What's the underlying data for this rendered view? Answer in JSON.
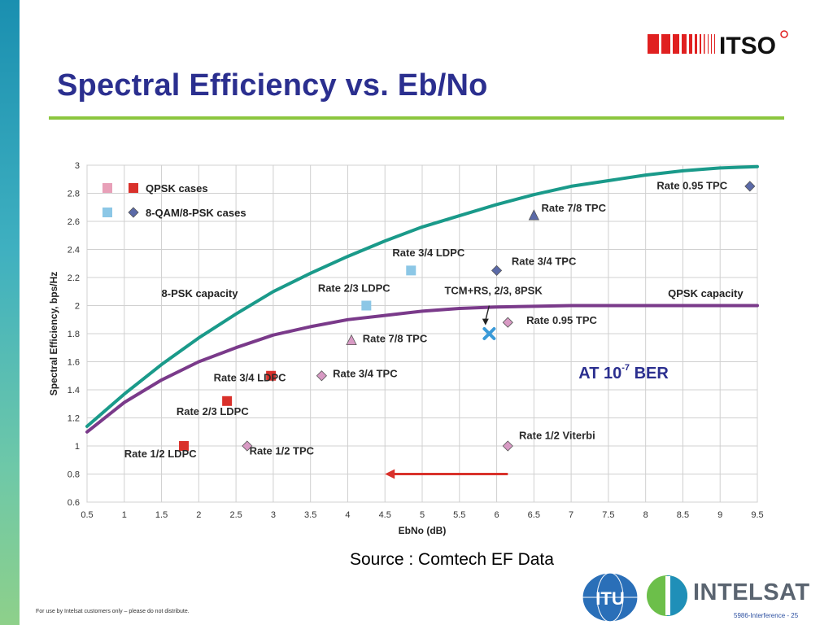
{
  "slide": {
    "title": "Spectral Efficiency vs. Eb/No",
    "source": "Source : Comtech EF Data",
    "footer_note": "For use by Intelsat customers only – please do not distribute.",
    "footer_page": "5986-Interference - 25",
    "logos": {
      "itso": "ITSO",
      "itu": "ITU",
      "intelsat": "INTELSAT"
    }
  },
  "colors": {
    "title": "#2b2f8f",
    "rule": "#8cc63f",
    "psk8_curve": "#1a9a8a",
    "qpsk_curve": "#7a3a8a",
    "qpsk_marker": "#d9312b",
    "qam_marker": "#5b6aa8",
    "pink_marker": "#d89ac4",
    "light_blue_marker": "#8cc7e6",
    "arrow": "#d9312b",
    "cross": "#3a9ad8"
  },
  "chart_data": {
    "type": "line",
    "xlabel": "EbNo (dB)",
    "ylabel": "Spectral Efficiency, bps/Hz",
    "xlim": [
      0.5,
      9.5
    ],
    "ylim": [
      0.6,
      3
    ],
    "xticks": [
      "0.5",
      "1",
      "1.5",
      "2",
      "2.5",
      "3",
      "3.5",
      "4",
      "4.5",
      "5",
      "5.5",
      "6",
      "6.5",
      "7",
      "7.5",
      "8",
      "8.5",
      "9",
      "9.5"
    ],
    "yticks": [
      "0.6",
      "0.8",
      "1",
      "1.2",
      "1.4",
      "1.6",
      "1.8",
      "2",
      "2.2",
      "2.4",
      "2.6",
      "2.8",
      "3"
    ],
    "grid": true,
    "series": [
      {
        "name": "8-PSK capacity",
        "color": "#1a9a8a",
        "x": [
          0.5,
          1.0,
          1.5,
          2.0,
          2.5,
          3.0,
          3.5,
          4.0,
          4.5,
          5.0,
          5.5,
          6.0,
          6.5,
          7.0,
          7.5,
          8.0,
          8.5,
          9.0,
          9.5
        ],
        "y": [
          1.14,
          1.37,
          1.58,
          1.77,
          1.94,
          2.1,
          2.23,
          2.35,
          2.46,
          2.56,
          2.64,
          2.72,
          2.79,
          2.85,
          2.89,
          2.93,
          2.96,
          2.98,
          2.99
        ]
      },
      {
        "name": "QPSK capacity",
        "color": "#7a3a8a",
        "x": [
          0.5,
          1.0,
          1.5,
          2.0,
          2.5,
          3.0,
          3.5,
          4.0,
          4.5,
          5.0,
          5.5,
          6.0,
          6.5,
          7.0,
          8.0,
          9.0,
          9.5
        ],
        "y": [
          1.1,
          1.31,
          1.47,
          1.6,
          1.7,
          1.79,
          1.85,
          1.9,
          1.93,
          1.96,
          1.98,
          1.99,
          1.995,
          2.0,
          2.0,
          2.0,
          2.0
        ]
      }
    ],
    "points": [
      {
        "x": 1.8,
        "y": 1.0,
        "shape": "square",
        "color": "#d9312b",
        "label": "Rate 1/2  LDPC",
        "lx": 1.0,
        "ly": 0.92
      },
      {
        "x": 2.38,
        "y": 1.32,
        "shape": "square",
        "color": "#d9312b",
        "label": "Rate 2/3  LDPC",
        "lx": 1.7,
        "ly": 1.22
      },
      {
        "x": 2.97,
        "y": 1.5,
        "shape": "square",
        "color": "#d9312b",
        "label": "Rate 3/4  LDPC",
        "lx": 2.2,
        "ly": 1.46
      },
      {
        "x": 2.65,
        "y": 1.0,
        "shape": "diamond",
        "color": "#d89ac4",
        "label": "Rate 1/2  TPC",
        "lx": 2.68,
        "ly": 0.94
      },
      {
        "x": 3.65,
        "y": 1.5,
        "shape": "diamond",
        "color": "#d89ac4",
        "label": "Rate 3/4  TPC",
        "lx": 3.8,
        "ly": 1.49
      },
      {
        "x": 4.05,
        "y": 1.75,
        "shape": "triangle",
        "color": "#d89ac4",
        "label": "Rate 7/8  TPC",
        "lx": 4.2,
        "ly": 1.74
      },
      {
        "x": 4.25,
        "y": 2.0,
        "shape": "square",
        "color": "#8cc7e6",
        "label": "Rate 2/3  LDPC",
        "lx": 3.6,
        "ly": 2.1
      },
      {
        "x": 4.85,
        "y": 2.25,
        "shape": "square",
        "color": "#8cc7e6",
        "label": "Rate 3/4  LDPC",
        "lx": 4.6,
        "ly": 2.35
      },
      {
        "x": 6.15,
        "y": 1.88,
        "shape": "diamond",
        "color": "#d89ac4",
        "label": "Rate 0.95  TPC",
        "lx": 6.4,
        "ly": 1.87
      },
      {
        "x": 6.15,
        "y": 1.0,
        "shape": "diamond",
        "color": "#d89ac4",
        "label": "Rate 1/2  Viterbi",
        "lx": 6.3,
        "ly": 1.05
      },
      {
        "x": 6.0,
        "y": 2.25,
        "shape": "diamond",
        "color": "#5b6aa8",
        "label": "Rate 3/4  TPC",
        "lx": 6.2,
        "ly": 2.29
      },
      {
        "x": 6.5,
        "y": 2.64,
        "shape": "triangle",
        "color": "#5b6aa8",
        "label": "Rate 7/8  TPC",
        "lx": 6.6,
        "ly": 2.67
      },
      {
        "x": 9.4,
        "y": 2.85,
        "shape": "diamond",
        "color": "#5b6aa8",
        "label": "Rate 0.95  TPC",
        "lx": 8.15,
        "ly": 2.83
      },
      {
        "x": 5.9,
        "y": 1.8,
        "shape": "cross",
        "color": "#3a9ad8",
        "label": "TCM+RS, 2/3, 8PSK",
        "lx": 5.3,
        "ly": 2.08
      }
    ],
    "curve_labels": [
      {
        "text": "8-PSK capacity",
        "x": 1.5,
        "y": 2.06
      },
      {
        "text": "QPSK capacity",
        "x": 8.3,
        "y": 2.06
      }
    ],
    "legend": [
      {
        "text": "QPSK cases",
        "markers": [
          "#e8a0b8",
          "#d9312b"
        ],
        "shapes": [
          "square",
          "square"
        ]
      },
      {
        "text": "8-QAM/8-PSK cases",
        "markers": [
          "#8cc7e6",
          "#5b6aa8"
        ],
        "shapes": [
          "square",
          "diamond"
        ]
      }
    ],
    "annotation": {
      "prefix": "AT  10",
      "sup": "-7",
      "suffix": " BER"
    },
    "arrow": {
      "from_x": 6.15,
      "to_x": 4.5,
      "y": 0.8
    },
    "pointer": {
      "from_x": 5.9,
      "from_y": 2.0,
      "to_x": 5.85,
      "to_y": 1.86
    }
  }
}
